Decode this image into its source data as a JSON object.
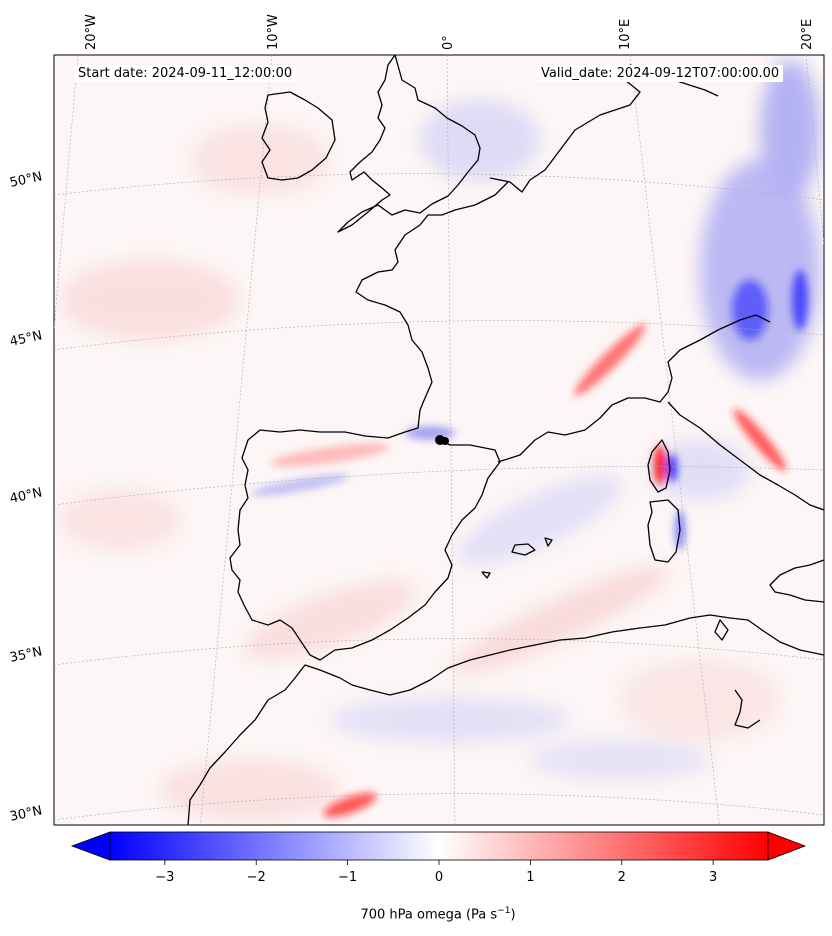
{
  "map": {
    "start_label": "Start date: 2024-09-11_12:00:00",
    "valid_label": "Valid_date: 2024-09-12T07:00:00.00",
    "lon_labels": [
      "20°W",
      "10°W",
      "0°",
      "10°E",
      "20°E"
    ],
    "lat_labels": [
      "50°N",
      "45°N",
      "40°N",
      "35°N",
      "30°N"
    ],
    "colorbar": {
      "ticks": [
        "−3",
        "−2",
        "−1",
        "0",
        "1",
        "2",
        "3"
      ],
      "label": "700 hPa omega (Pa s",
      "label_sup": "−1",
      "label_end": ")",
      "min": -3.6,
      "max": 3.6
    },
    "colors": {
      "negative": "#0000ff",
      "positive": "#ff0000",
      "neutral": "#ffffff",
      "coast": "#000000"
    }
  }
}
